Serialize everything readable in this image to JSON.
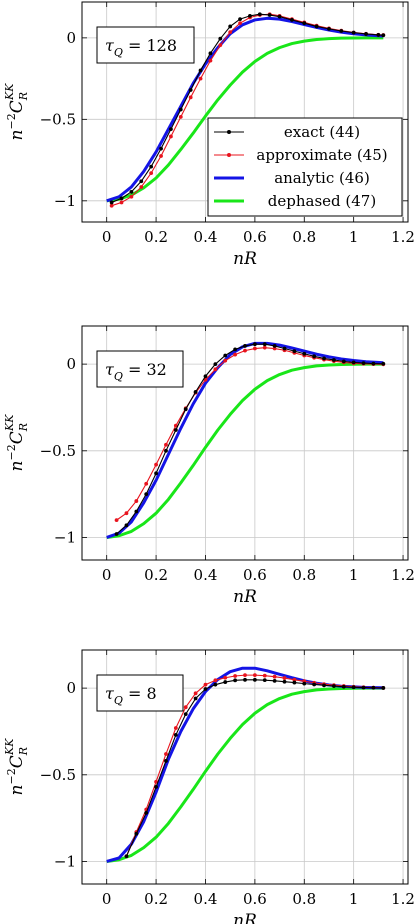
{
  "chart_data": [
    {
      "type": "line",
      "annotation": {
        "tau": "τ",
        "sub": "Q",
        "rest": " = 128"
      },
      "xlabel": {
        "main": "nR"
      },
      "ylabel": {
        "pre": "n",
        "sup1": "−2",
        "main": "C",
        "sub": "R",
        "sup2": "KK"
      },
      "xlim": [
        -0.1,
        1.22
      ],
      "ylim": [
        -1.13,
        0.22
      ],
      "xticks": [
        0,
        0.2,
        0.4,
        0.6,
        0.8,
        1,
        1.2
      ],
      "xtick_labels": [
        "0",
        "0.2",
        "0.4",
        "0.6",
        "0.8",
        "1",
        "1.2"
      ],
      "yticks": [
        -1,
        -0.5,
        0
      ],
      "ytick_labels": [
        "−1",
        "−0.5",
        "0"
      ],
      "grid": true,
      "legend": {
        "position": "bottom-right",
        "entries": [
          {
            "label": "exact (44)",
            "color": "#000000"
          },
          {
            "label": "approximate (45)",
            "color": "#e8141e"
          },
          {
            "label": "analytic (46)",
            "color": "#1414e6"
          },
          {
            "label": "dephased (47)",
            "color": "#19e619"
          }
        ]
      },
      "series": [
        {
          "name": "exact (44)",
          "color": "#000000",
          "marker": true,
          "x": [
            0.02,
            0.06,
            0.1,
            0.14,
            0.18,
            0.22,
            0.26,
            0.3,
            0.34,
            0.38,
            0.42,
            0.46,
            0.5,
            0.54,
            0.58,
            0.62,
            0.66,
            0.7,
            0.75,
            0.8,
            0.85,
            0.9,
            0.95,
            1.0,
            1.05,
            1.1,
            1.12
          ],
          "y": [
            -1.01,
            -0.985,
            -0.945,
            -0.88,
            -0.79,
            -0.68,
            -0.56,
            -0.44,
            -0.32,
            -0.2,
            -0.095,
            -0.005,
            0.07,
            0.115,
            0.135,
            0.145,
            0.14,
            0.13,
            0.11,
            0.09,
            0.07,
            0.055,
            0.042,
            0.032,
            0.024,
            0.018,
            0.016
          ]
        },
        {
          "name": "approximate (45)",
          "color": "#e8141e",
          "marker": true,
          "x": [
            0.02,
            0.06,
            0.1,
            0.14,
            0.18,
            0.22,
            0.26,
            0.3,
            0.34,
            0.38,
            0.42,
            0.46,
            0.5,
            0.54,
            0.58,
            0.62,
            0.66,
            0.7,
            0.75,
            0.8,
            0.85,
            0.9,
            0.95,
            1.0,
            1.05,
            1.1,
            1.12
          ],
          "y": [
            -1.03,
            -1.01,
            -0.975,
            -0.915,
            -0.83,
            -0.725,
            -0.605,
            -0.485,
            -0.365,
            -0.25,
            -0.14,
            -0.045,
            0.035,
            0.09,
            0.125,
            0.14,
            0.145,
            0.135,
            0.115,
            0.095,
            0.075,
            0.058,
            0.044,
            0.033,
            0.025,
            0.019,
            0.017
          ]
        },
        {
          "name": "analytic (46)",
          "color": "#1414e6",
          "marker": false,
          "x": [
            0.0,
            0.05,
            0.1,
            0.15,
            0.2,
            0.25,
            0.3,
            0.35,
            0.4,
            0.45,
            0.5,
            0.55,
            0.6,
            0.65,
            0.7,
            0.75,
            0.8,
            0.85,
            0.9,
            0.95,
            1.0,
            1.05,
            1.12
          ],
          "y": [
            -1.0,
            -0.975,
            -0.915,
            -0.82,
            -0.7,
            -0.56,
            -0.42,
            -0.28,
            -0.16,
            -0.06,
            0.025,
            0.08,
            0.11,
            0.12,
            0.115,
            0.1,
            0.082,
            0.064,
            0.048,
            0.035,
            0.025,
            0.018,
            0.011
          ]
        },
        {
          "name": "dephased (47)",
          "color": "#19e619",
          "marker": false,
          "x": [
            0.0,
            0.05,
            0.1,
            0.15,
            0.2,
            0.25,
            0.3,
            0.35,
            0.4,
            0.45,
            0.5,
            0.55,
            0.6,
            0.65,
            0.7,
            0.75,
            0.8,
            0.85,
            0.9,
            0.95,
            1.0,
            1.05,
            1.12
          ],
          "y": [
            -1.0,
            -0.99,
            -0.965,
            -0.92,
            -0.86,
            -0.78,
            -0.685,
            -0.585,
            -0.48,
            -0.38,
            -0.29,
            -0.21,
            -0.145,
            -0.095,
            -0.06,
            -0.035,
            -0.02,
            -0.01,
            -0.005,
            -0.002,
            -0.001,
            0.0,
            0.0
          ]
        }
      ]
    },
    {
      "type": "line",
      "annotation": {
        "tau": "τ",
        "sub": "Q",
        "rest": " = 32"
      },
      "xlabel": {
        "main": "nR"
      },
      "ylabel": {
        "pre": "n",
        "sup1": "−2",
        "main": "C",
        "sub": "R",
        "sup2": "KK"
      },
      "xlim": [
        -0.1,
        1.22
      ],
      "ylim": [
        -1.13,
        0.22
      ],
      "xticks": [
        0,
        0.2,
        0.4,
        0.6,
        0.8,
        1,
        1.2
      ],
      "xtick_labels": [
        "0",
        "0.2",
        "0.4",
        "0.6",
        "0.8",
        "1",
        "1.2"
      ],
      "yticks": [
        -1,
        -0.5,
        0
      ],
      "ytick_labels": [
        "−1",
        "−0.5",
        "0"
      ],
      "grid": true,
      "series": [
        {
          "name": "exact (44)",
          "color": "#000000",
          "marker": true,
          "x": [
            0.04,
            0.08,
            0.12,
            0.16,
            0.2,
            0.24,
            0.28,
            0.32,
            0.36,
            0.4,
            0.44,
            0.48,
            0.52,
            0.56,
            0.6,
            0.64,
            0.68,
            0.72,
            0.76,
            0.8,
            0.84,
            0.88,
            0.92,
            0.96,
            1.0,
            1.04,
            1.08,
            1.12
          ],
          "y": [
            -0.98,
            -0.93,
            -0.85,
            -0.75,
            -0.63,
            -0.5,
            -0.38,
            -0.26,
            -0.16,
            -0.07,
            0.0,
            0.05,
            0.085,
            0.105,
            0.115,
            0.115,
            0.105,
            0.09,
            0.075,
            0.06,
            0.045,
            0.033,
            0.024,
            0.016,
            0.01,
            0.006,
            0.003,
            0.002
          ]
        },
        {
          "name": "approximate (45)",
          "color": "#e8141e",
          "marker": true,
          "x": [
            0.04,
            0.08,
            0.12,
            0.16,
            0.2,
            0.24,
            0.28,
            0.32,
            0.36,
            0.4,
            0.44,
            0.48,
            0.52,
            0.56,
            0.6,
            0.64,
            0.68,
            0.72,
            0.76,
            0.8,
            0.84,
            0.88,
            0.92,
            0.96,
            1.0,
            1.04,
            1.08,
            1.12
          ],
          "y": [
            -0.9,
            -0.86,
            -0.79,
            -0.69,
            -0.58,
            -0.465,
            -0.355,
            -0.255,
            -0.165,
            -0.09,
            -0.03,
            0.02,
            0.055,
            0.078,
            0.09,
            0.095,
            0.09,
            0.08,
            0.065,
            0.05,
            0.037,
            0.026,
            0.017,
            0.01,
            0.005,
            0.002,
            0.0,
            -0.001
          ]
        },
        {
          "name": "analytic (46)",
          "color": "#1414e6",
          "marker": false,
          "x": [
            0.0,
            0.05,
            0.1,
            0.15,
            0.2,
            0.25,
            0.3,
            0.35,
            0.4,
            0.45,
            0.5,
            0.55,
            0.6,
            0.65,
            0.7,
            0.75,
            0.8,
            0.85,
            0.9,
            0.95,
            1.0,
            1.05,
            1.12
          ],
          "y": [
            -1.0,
            -0.975,
            -0.91,
            -0.8,
            -0.67,
            -0.52,
            -0.37,
            -0.23,
            -0.11,
            -0.02,
            0.055,
            0.1,
            0.12,
            0.12,
            0.11,
            0.093,
            0.075,
            0.057,
            0.042,
            0.03,
            0.021,
            0.014,
            0.008
          ]
        },
        {
          "name": "dephased (47)",
          "color": "#19e619",
          "marker": false,
          "x": [
            0.0,
            0.05,
            0.1,
            0.15,
            0.2,
            0.25,
            0.3,
            0.35,
            0.4,
            0.45,
            0.5,
            0.55,
            0.6,
            0.65,
            0.7,
            0.75,
            0.8,
            0.85,
            0.9,
            0.95,
            1.0,
            1.05,
            1.12
          ],
          "y": [
            -1.0,
            -0.99,
            -0.965,
            -0.92,
            -0.86,
            -0.78,
            -0.685,
            -0.585,
            -0.48,
            -0.38,
            -0.29,
            -0.21,
            -0.145,
            -0.095,
            -0.06,
            -0.035,
            -0.02,
            -0.01,
            -0.005,
            -0.002,
            -0.001,
            0.0,
            0.0
          ]
        }
      ]
    },
    {
      "type": "line",
      "annotation": {
        "tau": "τ",
        "sub": "Q",
        "rest": " = 8"
      },
      "xlabel": {
        "main": "nR"
      },
      "ylabel": {
        "pre": "n",
        "sup1": "−2",
        "main": "C",
        "sub": "R",
        "sup2": "KK"
      },
      "xlim": [
        -0.1,
        1.22
      ],
      "ylim": [
        -1.13,
        0.22
      ],
      "xticks": [
        0,
        0.2,
        0.4,
        0.6,
        0.8,
        1,
        1.2
      ],
      "xtick_labels": [
        "0",
        "0.2",
        "0.4",
        "0.6",
        "0.8",
        "1",
        "1.2"
      ],
      "yticks": [
        -1,
        -0.5,
        0
      ],
      "ytick_labels": [
        "−1",
        "−0.5",
        "0"
      ],
      "grid": true,
      "series": [
        {
          "name": "exact (44)",
          "color": "#000000",
          "marker": true,
          "x": [
            0.08,
            0.12,
            0.16,
            0.2,
            0.24,
            0.28,
            0.32,
            0.36,
            0.4,
            0.44,
            0.48,
            0.52,
            0.56,
            0.6,
            0.64,
            0.68,
            0.72,
            0.76,
            0.8,
            0.84,
            0.88,
            0.92,
            0.96,
            1.0,
            1.04,
            1.08,
            1.12
          ],
          "y": [
            -0.97,
            -0.84,
            -0.72,
            -0.57,
            -0.42,
            -0.27,
            -0.15,
            -0.06,
            -0.005,
            0.02,
            0.035,
            0.045,
            0.048,
            0.048,
            0.046,
            0.042,
            0.037,
            0.032,
            0.026,
            0.021,
            0.016,
            0.012,
            0.008,
            0.005,
            0.003,
            0.002,
            0.001
          ]
        },
        {
          "name": "approximate (45)",
          "color": "#e8141e",
          "marker": true,
          "x": [
            0.08,
            0.12,
            0.16,
            0.2,
            0.24,
            0.28,
            0.32,
            0.36,
            0.4,
            0.44,
            0.48,
            0.52,
            0.56,
            0.6,
            0.64,
            0.68,
            0.72,
            0.76,
            0.8,
            0.84,
            0.88,
            0.92,
            0.96,
            1.0,
            1.04,
            1.08,
            1.12
          ],
          "y": [
            -0.97,
            -0.83,
            -0.7,
            -0.54,
            -0.38,
            -0.23,
            -0.11,
            -0.03,
            0.02,
            0.045,
            0.06,
            0.07,
            0.075,
            0.075,
            0.072,
            0.066,
            0.058,
            0.048,
            0.04,
            0.031,
            0.023,
            0.017,
            0.012,
            0.008,
            0.005,
            0.003,
            0.001
          ]
        },
        {
          "name": "analytic (46)",
          "color": "#1414e6",
          "marker": false,
          "x": [
            0.0,
            0.05,
            0.1,
            0.15,
            0.2,
            0.25,
            0.3,
            0.35,
            0.4,
            0.45,
            0.5,
            0.55,
            0.6,
            0.65,
            0.7,
            0.75,
            0.8,
            0.85,
            0.9,
            0.95,
            1.0,
            1.05,
            1.12
          ],
          "y": [
            -1.0,
            -0.98,
            -0.9,
            -0.77,
            -0.6,
            -0.41,
            -0.25,
            -0.12,
            -0.02,
            0.05,
            0.095,
            0.115,
            0.115,
            0.1,
            0.08,
            0.06,
            0.042,
            0.028,
            0.018,
            0.011,
            0.007,
            0.004,
            0.002
          ]
        },
        {
          "name": "dephased (47)",
          "color": "#19e619",
          "marker": false,
          "x": [
            0.0,
            0.05,
            0.1,
            0.15,
            0.2,
            0.25,
            0.3,
            0.35,
            0.4,
            0.45,
            0.5,
            0.55,
            0.6,
            0.65,
            0.7,
            0.75,
            0.8,
            0.85,
            0.9,
            0.95,
            1.0,
            1.05,
            1.12
          ],
          "y": [
            -1.0,
            -0.99,
            -0.965,
            -0.92,
            -0.86,
            -0.78,
            -0.685,
            -0.585,
            -0.48,
            -0.38,
            -0.29,
            -0.21,
            -0.145,
            -0.095,
            -0.06,
            -0.035,
            -0.02,
            -0.01,
            -0.005,
            -0.002,
            -0.001,
            0.0,
            0.0
          ]
        }
      ]
    }
  ]
}
